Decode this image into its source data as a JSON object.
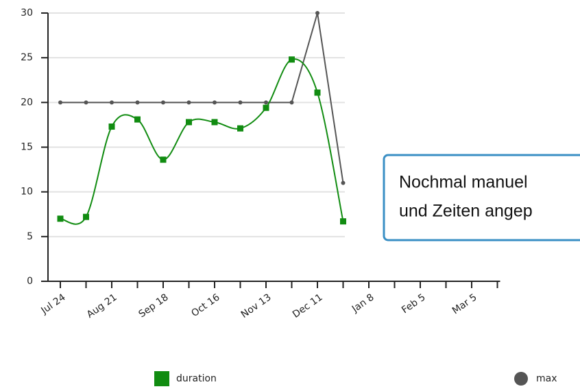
{
  "chart_data": {
    "type": "line",
    "categories": [
      "Jul 24",
      null,
      "Aug 21",
      null,
      "Sep 18",
      null,
      "Oct 16",
      null,
      "Nov 13",
      null,
      "Dec 11",
      null,
      "Jan 8",
      null,
      "Feb 5",
      null,
      "Mar 5",
      null
    ],
    "series": [
      {
        "name": "duration",
        "color": "#118c11",
        "marker": "square",
        "smooth": true,
        "values": [
          7,
          7.2,
          17.3,
          18.1,
          13.6,
          17.8,
          17.8,
          17.1,
          19.4,
          24.8,
          21.1,
          6.7,
          null,
          null,
          null,
          null,
          null,
          null
        ]
      },
      {
        "name": "max",
        "color": "#555555",
        "marker": "circle",
        "smooth": false,
        "values": [
          20,
          20,
          20,
          20,
          20,
          20,
          20,
          20,
          20,
          20,
          30,
          11,
          null,
          null,
          null,
          null,
          null,
          null
        ]
      }
    ],
    "ylim": [
      0,
      30
    ],
    "yticks": [
      0,
      5,
      10,
      15,
      20,
      25,
      30
    ],
    "grid": true,
    "annotation": [
      "Nochmal manuel",
      "und Zeiten angep"
    ]
  }
}
